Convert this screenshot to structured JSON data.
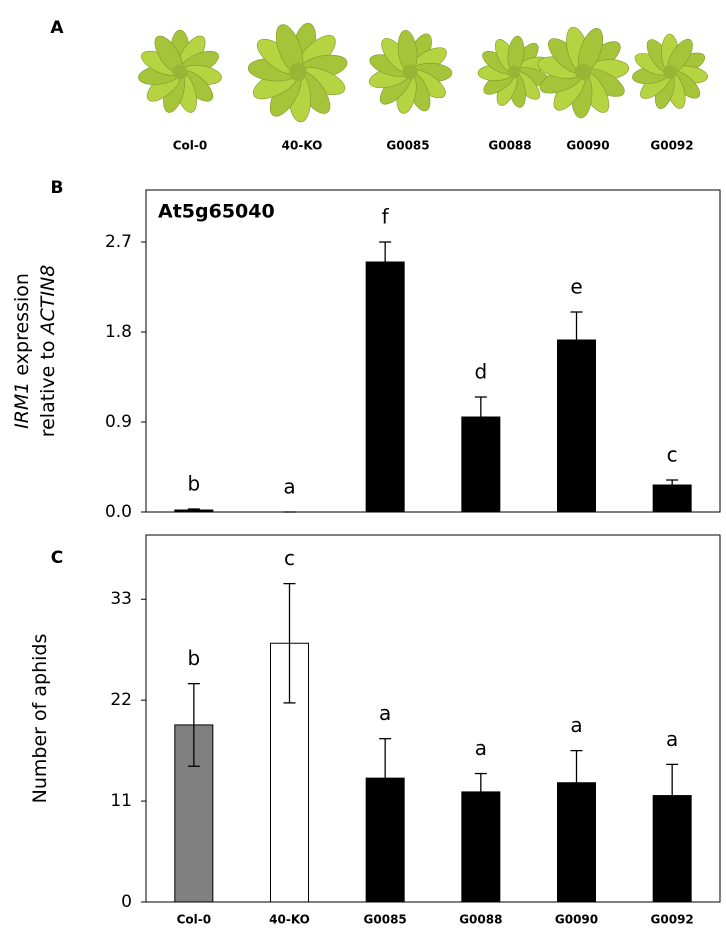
{
  "photo_panel": {
    "label": "A",
    "captions": [
      "Col-0",
      "40-KO",
      "G0085",
      "G0088",
      "G0090",
      "G0092"
    ]
  },
  "chart_data": [
    {
      "type": "bar",
      "panel_label": "B",
      "annotation": "At5g65040",
      "ylabel": [
        [
          {
            "text": "IRM1",
            "italic": true
          },
          {
            "text": " expression"
          }
        ],
        [
          {
            "text": "relative to "
          },
          {
            "text": "ACTIN8",
            "italic": true
          }
        ]
      ],
      "values": [
        0.02,
        0,
        2.5,
        0.95,
        1.72,
        0.27
      ],
      "errors": [
        0.01,
        0,
        0.2,
        0.2,
        0.28,
        0.05
      ],
      "error_style": "upper",
      "letters": [
        "b",
        "a",
        "f",
        "d",
        "e",
        "c"
      ],
      "colors": [
        "#000000",
        "#000000",
        "#000000",
        "#000000",
        "#000000",
        "#000000"
      ],
      "ylim": [
        0,
        3.22
      ],
      "yticks": [
        {
          "value": 0,
          "label": "0.0"
        },
        0.9,
        1.8,
        2.7
      ]
    },
    {
      "type": "bar",
      "panel_label": "C",
      "ylabel": [
        [
          {
            "text": "Number of aphids"
          }
        ]
      ],
      "categories": [
        "Col-0",
        "40-KO",
        "G0085",
        "G0088",
        "G0090",
        "G0092"
      ],
      "values": [
        19.3,
        28.2,
        13.5,
        12,
        13,
        11.6
      ],
      "errors": [
        4.5,
        6.5,
        4.3,
        2,
        3.5,
        3.4
      ],
      "error_style": "both",
      "letters": [
        "b",
        "c",
        "a",
        "a",
        "a",
        "a"
      ],
      "colors": [
        "#808080",
        "#ffffff",
        "#000000",
        "#000000",
        "#000000",
        "#000000"
      ],
      "ylim": [
        0,
        40
      ],
      "yticks": [
        0,
        11,
        22,
        33
      ]
    }
  ]
}
